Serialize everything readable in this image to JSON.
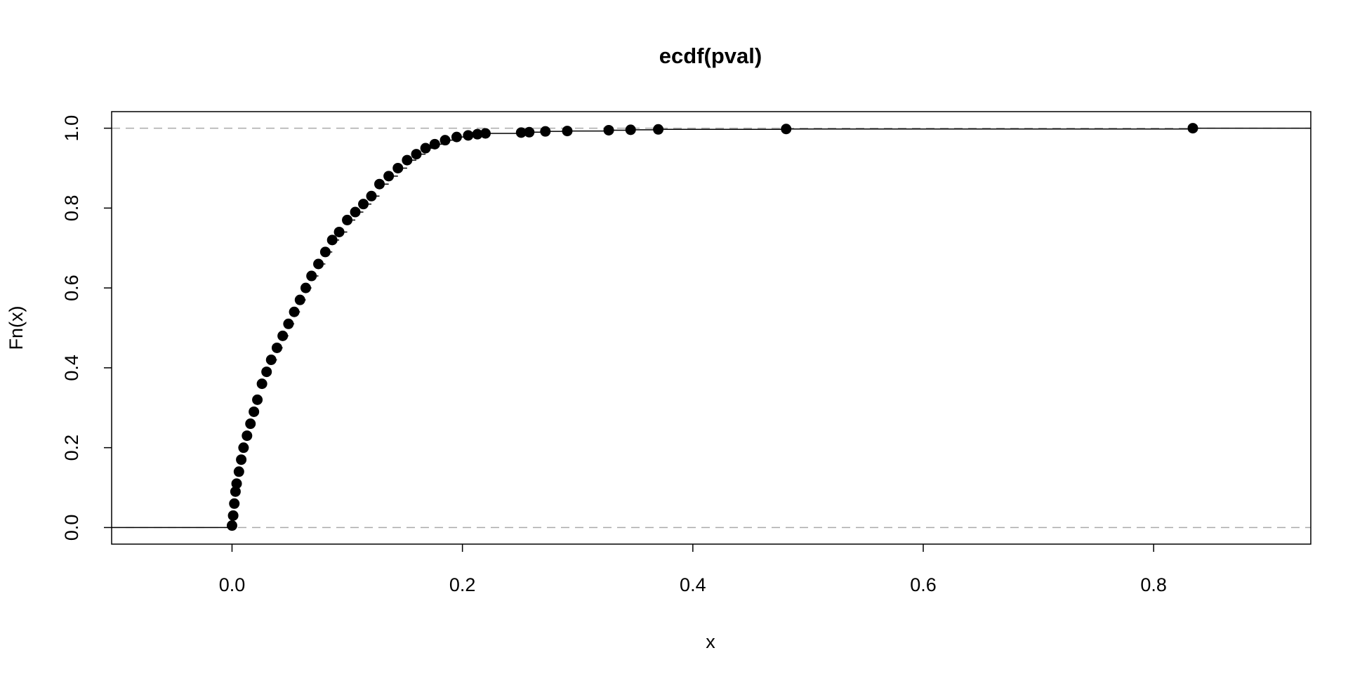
{
  "chart_data": {
    "type": "ecdf",
    "title": "ecdf(pval)",
    "x_label": "x",
    "y_label": "Fn(x)",
    "x": [
      0.0,
      0.001,
      0.002,
      0.003,
      0.004,
      0.006,
      0.008,
      0.01,
      0.013,
      0.016,
      0.019,
      0.022,
      0.026,
      0.03,
      0.034,
      0.039,
      0.044,
      0.049,
      0.054,
      0.059,
      0.064,
      0.069,
      0.075,
      0.081,
      0.087,
      0.093,
      0.1,
      0.107,
      0.114,
      0.121,
      0.128,
      0.136,
      0.144,
      0.152,
      0.16,
      0.168,
      0.176,
      0.185,
      0.195,
      0.205,
      0.213,
      0.22,
      0.251,
      0.258,
      0.272,
      0.291,
      0.327,
      0.346,
      0.37,
      0.481,
      0.834
    ],
    "values": [
      0.005,
      0.03,
      0.06,
      0.09,
      0.11,
      0.14,
      0.17,
      0.2,
      0.23,
      0.26,
      0.29,
      0.32,
      0.36,
      0.39,
      0.42,
      0.45,
      0.48,
      0.51,
      0.54,
      0.57,
      0.6,
      0.63,
      0.66,
      0.69,
      0.72,
      0.74,
      0.77,
      0.79,
      0.81,
      0.83,
      0.86,
      0.88,
      0.9,
      0.92,
      0.935,
      0.95,
      0.96,
      0.97,
      0.978,
      0.982,
      0.985,
      0.987,
      0.989,
      0.99,
      0.992,
      0.993,
      0.995,
      0.996,
      0.997,
      0.998,
      1.0
    ],
    "color": "#000000",
    "hlines": [
      0,
      1
    ],
    "xlim": [
      -0.1045,
      0.9364
    ],
    "ylim": [
      -0.0415,
      1.0415
    ],
    "xticks": [
      {
        "value": 0,
        "label": "0.0"
      },
      0.2,
      0.4,
      0.6,
      0.8
    ],
    "yticks": [
      {
        "value": 0,
        "label": "0.0"
      },
      0.2,
      0.4,
      0.6,
      0.8,
      {
        "value": 1,
        "label": "1.0"
      }
    ]
  }
}
